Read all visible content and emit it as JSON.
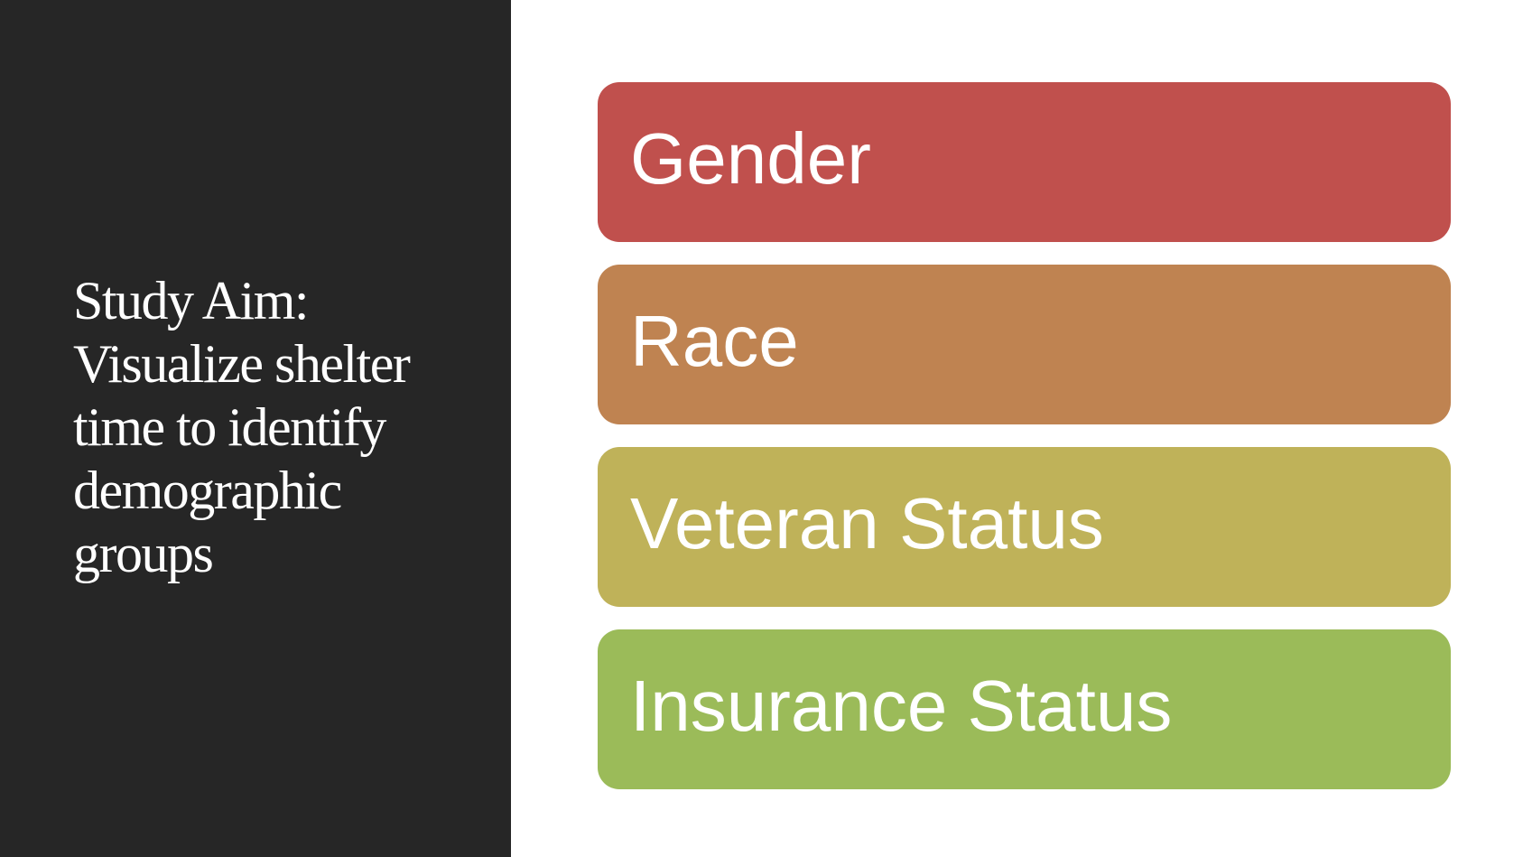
{
  "slide": {
    "aim_text": "Study Aim:\nVisualize shelter\ntime to identify\ndemographic\ngroups",
    "boxes": [
      {
        "label": "Gender",
        "color": "#C0504D"
      },
      {
        "label": "Race",
        "color": "#BF8351"
      },
      {
        "label": "Veteran Status",
        "color": "#BFB259"
      },
      {
        "label": "Insurance Status",
        "color": "#9BBB59"
      }
    ]
  },
  "colors": {
    "left_panel": "#262626",
    "background": "#FFFFFF",
    "text": "#FFFFFF"
  }
}
